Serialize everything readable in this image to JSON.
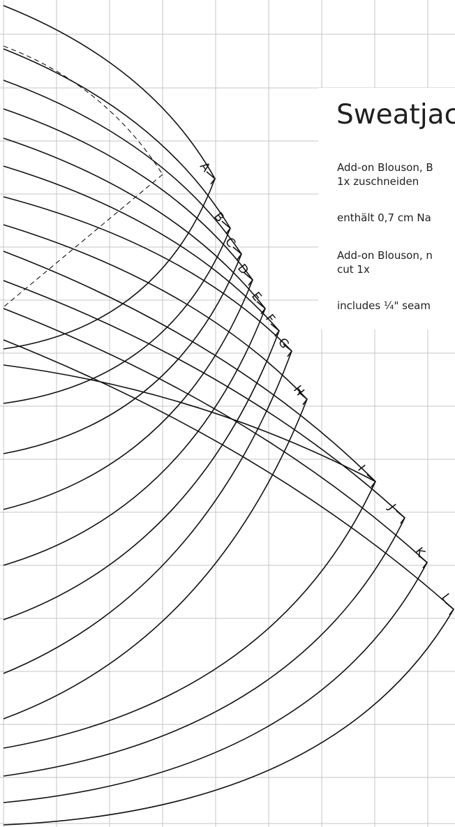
{
  "info": {
    "title": "Sweatjac",
    "lines": [
      "Add-on Blouson, B",
      "1x zuschneiden",
      "enthält 0,7 cm Na",
      "Add-on Blouson, n",
      "cut 1x",
      "includes ¼\" seam"
    ]
  },
  "sizes": [
    "A",
    "B",
    "C",
    "D",
    "E",
    "F",
    "G",
    "H",
    "I",
    "J",
    "K",
    "L"
  ]
}
